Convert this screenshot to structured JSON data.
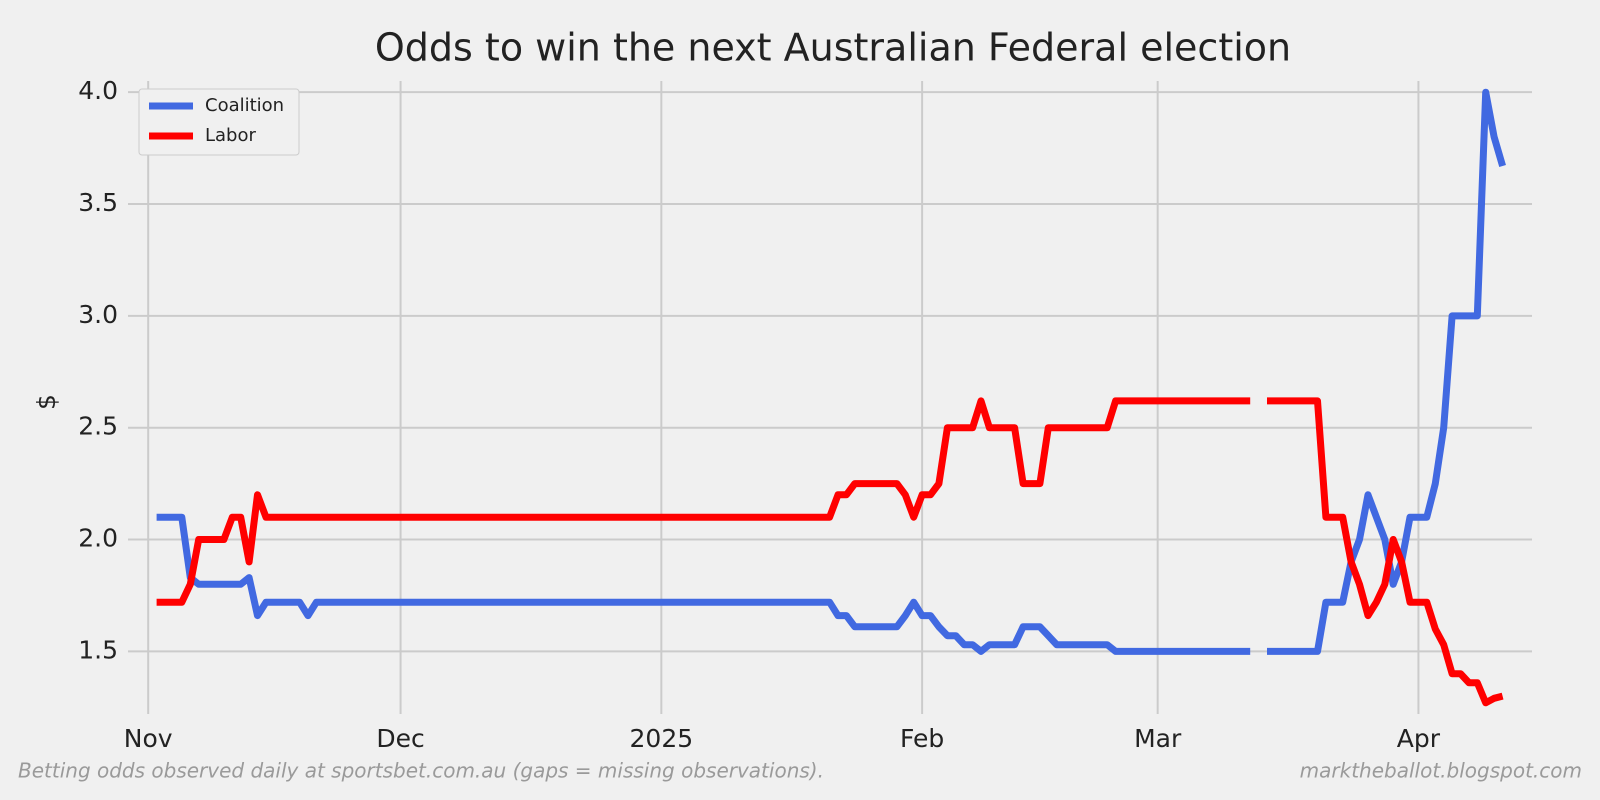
{
  "chart_data": {
    "type": "line",
    "title": "Odds to win the next Australian Federal election",
    "y_label": "$",
    "footnote": "Betting odds observed daily at sportsbet.com.au (gaps = missing observations).",
    "source": "marktheballot.blogspot.com",
    "grid": true,
    "legend": "upper left",
    "xlim": [
      -2.4,
      164.5
    ],
    "xticks": [
      {
        "value": 0,
        "label": "Nov"
      },
      {
        "value": 30,
        "label": "Dec"
      },
      {
        "value": 61,
        "label": "2025"
      },
      {
        "value": 92,
        "label": "Feb"
      },
      {
        "value": 120,
        "label": "Mar"
      },
      {
        "value": 151,
        "label": "Apr"
      }
    ],
    "ylim": [
      1.22,
      4.05
    ],
    "yticks": [
      1.5,
      {
        "value": 2,
        "label": "2.0"
      },
      2.5,
      {
        "value": 3,
        "label": "3.0"
      },
      3.5,
      {
        "value": 4,
        "label": "4.0"
      }
    ],
    "x": [
      1,
      2,
      3,
      4,
      5,
      6,
      7,
      8,
      9,
      10,
      11,
      12,
      13,
      14,
      15,
      16,
      17,
      18,
      19,
      20,
      21,
      22,
      23,
      24,
      25,
      26,
      27,
      28,
      29,
      30,
      31,
      32,
      33,
      34,
      35,
      36,
      37,
      38,
      39,
      40,
      41,
      42,
      43,
      44,
      45,
      46,
      47,
      48,
      49,
      50,
      51,
      52,
      53,
      54,
      55,
      56,
      57,
      58,
      59,
      60,
      61,
      62,
      63,
      64,
      65,
      66,
      67,
      68,
      69,
      70,
      71,
      72,
      73,
      74,
      75,
      76,
      77,
      78,
      79,
      80,
      81,
      82,
      83,
      84,
      85,
      86,
      87,
      88,
      89,
      90,
      91,
      92,
      93,
      94,
      95,
      96,
      97,
      98,
      99,
      100,
      101,
      102,
      103,
      104,
      105,
      106,
      107,
      108,
      109,
      110,
      111,
      112,
      113,
      114,
      115,
      116,
      117,
      118,
      119,
      120,
      121,
      122,
      123,
      124,
      125,
      126,
      127,
      128,
      129,
      130,
      131,
      132,
      133,
      134,
      135,
      136,
      137,
      138,
      139,
      140,
      141,
      142,
      143,
      144,
      145,
      146,
      147,
      148,
      149,
      150,
      151,
      152,
      153,
      154,
      155,
      156,
      157,
      158,
      159,
      160,
      161
    ],
    "series": [
      {
        "name": "Coalition",
        "color": "#4169e1",
        "values": [
          2.1,
          2.1,
          2.1,
          2.1,
          1.83,
          1.8,
          1.8,
          1.8,
          1.8,
          1.8,
          1.8,
          1.83,
          1.66,
          1.72,
          1.72,
          1.72,
          1.72,
          1.72,
          1.66,
          1.72,
          1.72,
          1.72,
          1.72,
          1.72,
          1.72,
          1.72,
          1.72,
          1.72,
          1.72,
          1.72,
          1.72,
          1.72,
          1.72,
          1.72,
          1.72,
          1.72,
          1.72,
          1.72,
          1.72,
          1.72,
          1.72,
          1.72,
          1.72,
          1.72,
          1.72,
          1.72,
          1.72,
          1.72,
          1.72,
          1.72,
          1.72,
          1.72,
          1.72,
          1.72,
          1.72,
          1.72,
          1.72,
          1.72,
          1.72,
          1.72,
          1.72,
          1.72,
          1.72,
          1.72,
          1.72,
          1.72,
          1.72,
          1.72,
          1.72,
          1.72,
          1.72,
          1.72,
          1.72,
          1.72,
          1.72,
          1.72,
          1.72,
          1.72,
          1.72,
          1.72,
          1.72,
          1.66,
          1.66,
          1.61,
          1.61,
          1.61,
          1.61,
          1.61,
          1.61,
          1.66,
          1.72,
          1.66,
          1.66,
          1.61,
          1.57,
          1.57,
          1.53,
          1.53,
          1.5,
          1.53,
          1.53,
          1.53,
          1.53,
          1.61,
          1.61,
          1.61,
          1.57,
          1.53,
          1.53,
          1.53,
          1.53,
          1.53,
          1.53,
          1.53,
          1.5,
          1.5,
          1.5,
          1.5,
          1.5,
          1.5,
          1.5,
          1.5,
          1.5,
          1.5,
          1.5,
          1.5,
          1.5,
          1.5,
          1.5,
          1.5,
          1.5,
          null,
          1.5,
          1.5,
          1.5,
          1.5,
          1.5,
          1.5,
          1.5,
          1.72,
          1.72,
          1.72,
          1.9,
          2.0,
          2.2,
          2.1,
          2.0,
          1.8,
          1.9,
          2.1,
          2.1,
          2.1,
          2.25,
          2.5,
          3.0,
          3.0,
          3.0,
          3.0,
          4.0,
          3.8,
          3.67
        ]
      },
      {
        "name": "Labor",
        "color": "#ff0000",
        "values": [
          1.72,
          1.72,
          1.72,
          1.72,
          1.8,
          2.0,
          2.0,
          2.0,
          2.0,
          2.1,
          2.1,
          1.9,
          2.2,
          2.1,
          2.1,
          2.1,
          2.1,
          2.1,
          2.1,
          2.1,
          2.1,
          2.1,
          2.1,
          2.1,
          2.1,
          2.1,
          2.1,
          2.1,
          2.1,
          2.1,
          2.1,
          2.1,
          2.1,
          2.1,
          2.1,
          2.1,
          2.1,
          2.1,
          2.1,
          2.1,
          2.1,
          2.1,
          2.1,
          2.1,
          2.1,
          2.1,
          2.1,
          2.1,
          2.1,
          2.1,
          2.1,
          2.1,
          2.1,
          2.1,
          2.1,
          2.1,
          2.1,
          2.1,
          2.1,
          2.1,
          2.1,
          2.1,
          2.1,
          2.1,
          2.1,
          2.1,
          2.1,
          2.1,
          2.1,
          2.1,
          2.1,
          2.1,
          2.1,
          2.1,
          2.1,
          2.1,
          2.1,
          2.1,
          2.1,
          2.1,
          2.1,
          2.2,
          2.2,
          2.25,
          2.25,
          2.25,
          2.25,
          2.25,
          2.25,
          2.2,
          2.1,
          2.2,
          2.2,
          2.25,
          2.5,
          2.5,
          2.5,
          2.5,
          2.62,
          2.5,
          2.5,
          2.5,
          2.5,
          2.25,
          2.25,
          2.25,
          2.5,
          2.5,
          2.5,
          2.5,
          2.5,
          2.5,
          2.5,
          2.5,
          2.62,
          2.62,
          2.62,
          2.62,
          2.62,
          2.62,
          2.62,
          2.62,
          2.62,
          2.62,
          2.62,
          2.62,
          2.62,
          2.62,
          2.62,
          2.62,
          2.62,
          null,
          2.62,
          2.62,
          2.62,
          2.62,
          2.62,
          2.62,
          2.62,
          2.1,
          2.1,
          2.1,
          1.9,
          1.8,
          1.66,
          1.72,
          1.8,
          2.0,
          1.9,
          1.72,
          1.72,
          1.72,
          1.6,
          1.53,
          1.4,
          1.4,
          1.36,
          1.36,
          1.27,
          1.29,
          1.3
        ]
      }
    ]
  }
}
